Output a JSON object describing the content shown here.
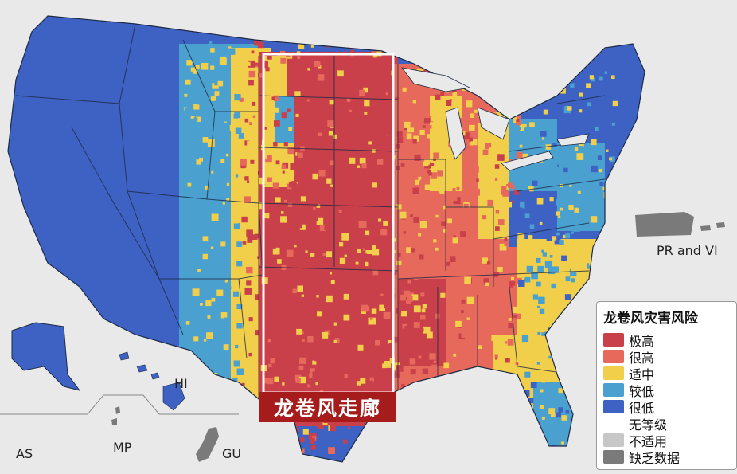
{
  "map": {
    "colors": {
      "very_high": "#c9404b",
      "high": "#e6695b",
      "moderate": "#f2cf4a",
      "low": "#4aa0cf",
      "very_low": "#3d62c4",
      "none": "#ffffff",
      "not_applicable": "#c7c7c7",
      "no_data": "#7a7a7a",
      "ocean": "#e9e9e9",
      "border": "#1d2a44"
    },
    "corridor_label": "龙卷风走廊",
    "territory_labels": {
      "pr_vi": "PR and VI",
      "hi": "HI",
      "as": "AS",
      "mp": "MP",
      "gu": "GU"
    }
  },
  "legend": {
    "title": "龙卷风灾害风险",
    "items": [
      {
        "label": "极高",
        "color": "#c9404b"
      },
      {
        "label": "很高",
        "color": "#e6695b"
      },
      {
        "label": "适中",
        "color": "#f2cf4a"
      },
      {
        "label": "较低",
        "color": "#4aa0cf"
      },
      {
        "label": "很低",
        "color": "#3d62c4"
      },
      {
        "label": "无等级",
        "color": "#ffffff"
      },
      {
        "label": "不适用",
        "color": "#c7c7c7"
      },
      {
        "label": "缺乏数据",
        "color": "#7a7a7a"
      }
    ]
  }
}
